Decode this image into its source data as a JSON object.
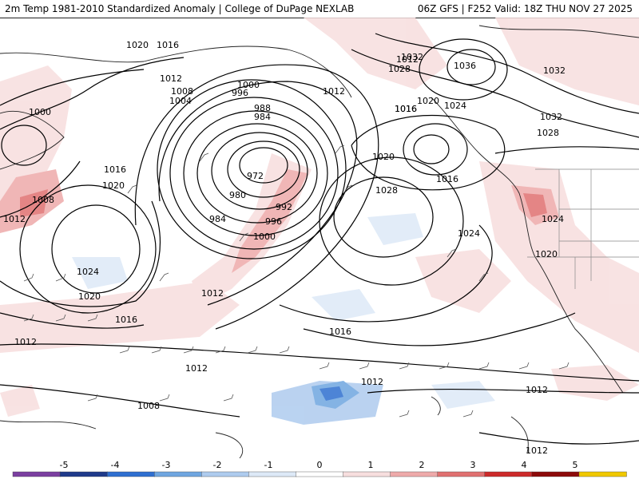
{
  "header": {
    "title_left": "2m Temp 1981-2010 Standardized Anomaly | College of DuPage NEXLAB",
    "title_right": "06Z GFS | F252 Valid: 18Z THU NOV 27 2025"
  },
  "isobar_labels": [
    "1020",
    "1016",
    "1012",
    "1008",
    "1004",
    "1000",
    "996",
    "988",
    "984",
    "972",
    "980",
    "984",
    "992",
    "996",
    "1000",
    "1012",
    "1016",
    "1012",
    "1032",
    "1028",
    "1036",
    "1032",
    "1016",
    "1020",
    "1024",
    "1032",
    "1028",
    "1020",
    "1016",
    "1028",
    "1024",
    "1024",
    "1020",
    "1000",
    "1008",
    "1012",
    "1016",
    "1020",
    "1024",
    "1020",
    "1016",
    "1012",
    "1012",
    "1012",
    "1016",
    "1012",
    "1008",
    "1012",
    "1012"
  ],
  "legend": {
    "ticks": [
      "-5",
      "-4",
      "-3",
      "-2",
      "-1",
      "0",
      "1",
      "2",
      "3",
      "4",
      "5"
    ],
    "colors": [
      "#7b3fa0",
      "#1f3a8a",
      "#2f6fd0",
      "#6fa6e0",
      "#aecbee",
      "#dde9f7",
      "#ffffff",
      "#f7dede",
      "#eeaaaa",
      "#e07070",
      "#cc2a2a",
      "#8c0a0a",
      "#f0c800"
    ]
  }
}
